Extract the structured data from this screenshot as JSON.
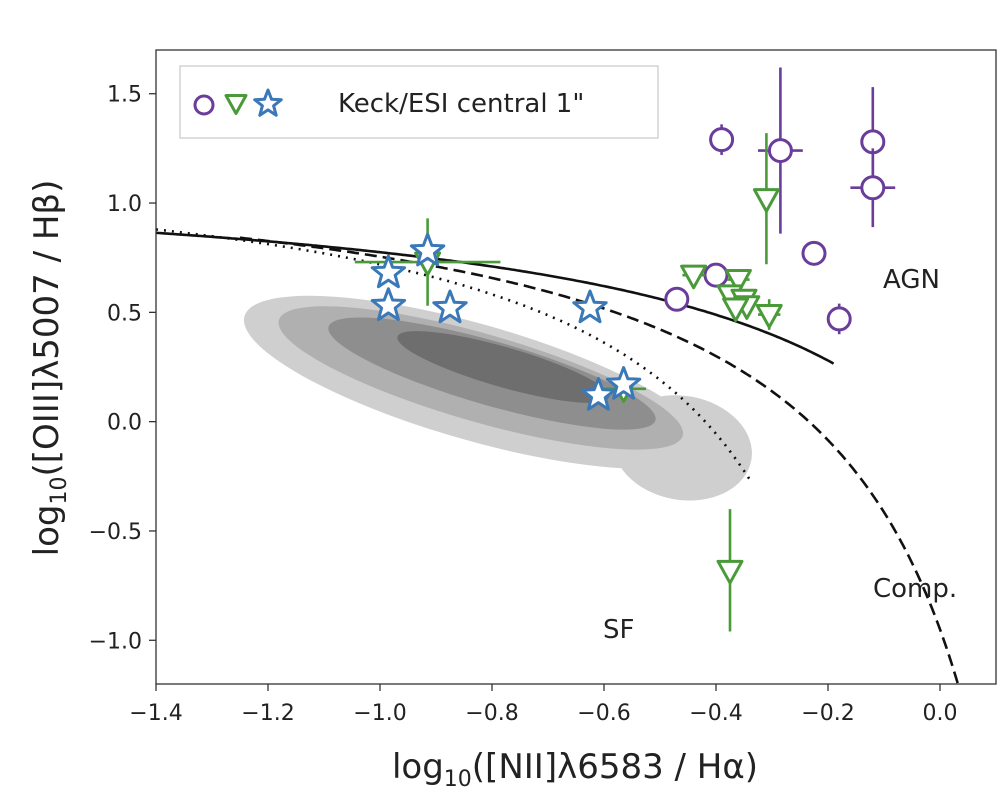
{
  "chart_data": {
    "type": "scatter",
    "xlabel": "log10([NII]λ6583 / Hα)",
    "ylabel": "log10([OIII]λ5007 / Hβ)",
    "xlim": [
      -1.4,
      0.1
    ],
    "ylim": [
      -1.2,
      1.7
    ],
    "x_ticks": [
      -1.4,
      -1.2,
      -1.0,
      -0.8,
      -0.6,
      -0.4,
      -0.2,
      0.0
    ],
    "y_ticks": [
      -1.0,
      -0.5,
      0.0,
      0.5,
      1.0,
      1.5
    ],
    "x_tick_labels": [
      "−1.4",
      "−1.2",
      "−1.0",
      "−0.8",
      "−0.6",
      "−0.4",
      "−0.2",
      "0.0"
    ],
    "y_tick_labels": [
      "−1.0",
      "−0.5",
      "0.0",
      "0.5",
      "1.0",
      "1.5"
    ],
    "grid": false,
    "legend": {
      "placement": "top-left",
      "text": "Keck/ESI central 1\""
    },
    "colors": {
      "circle": "#6a3d9a",
      "triangle": "#4a9a3a",
      "star": "#3a78b8",
      "contour_light": "#cfcfcf",
      "contour_mid": "#b0b0b0",
      "contour_dark": "#8e8e8e",
      "contour_darkest": "#6e6e6e"
    },
    "region_labels": [
      "AGN",
      "Comp.",
      "SF"
    ],
    "lines": [
      {
        "name": "kewley",
        "style": "solid"
      },
      {
        "name": "kauffmann",
        "style": "dotted"
      },
      {
        "name": "schawinski",
        "style": "dashed"
      }
    ],
    "series": [
      {
        "marker": "circle",
        "points": [
          {
            "x": -0.39,
            "y": 1.29,
            "yerr": 0.07,
            "xerr": 0
          },
          {
            "x": -0.285,
            "y": 1.24,
            "yerr": 0.38,
            "xerr": 0.04
          },
          {
            "x": -0.12,
            "y": 1.28,
            "yerr": 0.25,
            "xerr": 0
          },
          {
            "x": -0.12,
            "y": 1.07,
            "yerr": 0.18,
            "xerr": 0.04
          },
          {
            "x": -0.225,
            "y": 0.77,
            "yerr": 0,
            "xerr": 0
          },
          {
            "x": -0.4,
            "y": 0.67,
            "yerr": 0,
            "xerr": 0.03
          },
          {
            "x": -0.47,
            "y": 0.56,
            "yerr": 0.05,
            "xerr": 0
          },
          {
            "x": -0.18,
            "y": 0.47,
            "yerr": 0.07,
            "xerr": 0
          }
        ]
      },
      {
        "marker": "triangle",
        "points": [
          {
            "x": -0.915,
            "y": 0.73,
            "yerr": 0.2,
            "xerr": 0.13
          },
          {
            "x": -0.31,
            "y": 1.02,
            "yerr": 0.3,
            "xerr": 0
          },
          {
            "x": -0.44,
            "y": 0.67,
            "yerr": 0,
            "xerr": 0.02
          },
          {
            "x": -0.36,
            "y": 0.65,
            "yerr": 0,
            "xerr": 0.02
          },
          {
            "x": -0.375,
            "y": 0.58,
            "yerr": 0,
            "xerr": 0
          },
          {
            "x": -0.35,
            "y": 0.56,
            "yerr": 0,
            "xerr": 0
          },
          {
            "x": -0.345,
            "y": 0.53,
            "yerr": 0,
            "xerr": 0
          },
          {
            "x": -0.365,
            "y": 0.52,
            "yerr": 0,
            "xerr": 0
          },
          {
            "x": -0.305,
            "y": 0.49,
            "yerr": 0.07,
            "xerr": 0.02
          },
          {
            "x": -0.565,
            "y": 0.15,
            "yerr": 0.03,
            "xerr": 0.04
          },
          {
            "x": -0.375,
            "y": -0.68,
            "yerr": 0.28,
            "xerr": 0
          }
        ]
      },
      {
        "marker": "star",
        "points": [
          {
            "x": -0.915,
            "y": 0.78
          },
          {
            "x": -0.985,
            "y": 0.68
          },
          {
            "x": -0.985,
            "y": 0.53
          },
          {
            "x": -0.875,
            "y": 0.52
          },
          {
            "x": -0.625,
            "y": 0.52
          },
          {
            "x": -0.565,
            "y": 0.17
          },
          {
            "x": -0.61,
            "y": 0.12
          }
        ]
      }
    ]
  }
}
